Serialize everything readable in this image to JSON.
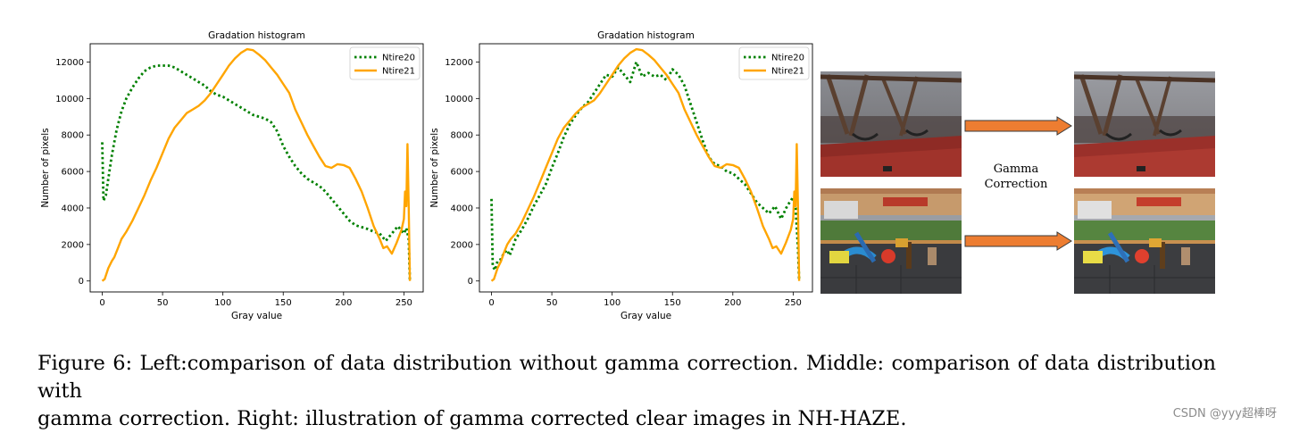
{
  "chart_data": [
    {
      "type": "line",
      "title": "Gradation histogram",
      "xlabel": "Gray value",
      "ylabel": "Number of pixels",
      "xlim": [
        -10,
        266
      ],
      "ylim": [
        -600,
        13000
      ],
      "xticks": [
        0,
        50,
        100,
        150,
        200,
        250
      ],
      "yticks": [
        0,
        2000,
        4000,
        6000,
        8000,
        10000,
        12000
      ],
      "legend_position": "top-right",
      "series": [
        {
          "name": "Ntire20",
          "style": "dotted",
          "color": "#008000",
          "x": [
            0,
            1,
            3,
            5,
            8,
            12,
            16,
            20,
            25,
            30,
            35,
            40,
            45,
            50,
            55,
            60,
            65,
            70,
            75,
            80,
            85,
            90,
            95,
            100,
            105,
            110,
            115,
            120,
            125,
            130,
            135,
            140,
            145,
            150,
            155,
            160,
            165,
            170,
            175,
            180,
            185,
            190,
            195,
            200,
            205,
            210,
            215,
            220,
            225,
            230,
            235,
            240,
            245,
            250,
            252,
            254,
            255
          ],
          "y": [
            7600,
            4400,
            4700,
            5600,
            6900,
            8300,
            9300,
            10000,
            10600,
            11100,
            11500,
            11700,
            11800,
            11800,
            11800,
            11700,
            11500,
            11300,
            11100,
            10900,
            10700,
            10400,
            10200,
            10100,
            9900,
            9700,
            9500,
            9300,
            9100,
            9000,
            8900,
            8700,
            8200,
            7400,
            6800,
            6300,
            5900,
            5600,
            5400,
            5200,
            4900,
            4500,
            4100,
            3700,
            3300,
            3050,
            2950,
            2850,
            2700,
            2600,
            2200,
            2600,
            3000,
            2600,
            2900,
            2300,
            0
          ]
        },
        {
          "name": "Ntire21",
          "style": "solid",
          "color": "#ffa500",
          "x": [
            0,
            2,
            5,
            8,
            10,
            13,
            16,
            20,
            25,
            30,
            35,
            40,
            45,
            50,
            55,
            60,
            65,
            70,
            75,
            80,
            85,
            90,
            95,
            100,
            105,
            110,
            115,
            120,
            125,
            130,
            135,
            140,
            145,
            150,
            155,
            160,
            165,
            170,
            175,
            180,
            185,
            190,
            195,
            200,
            205,
            210,
            215,
            220,
            225,
            230,
            233,
            236,
            240,
            244,
            248,
            250,
            251,
            252,
            253,
            254,
            255
          ],
          "y": [
            0,
            100,
            700,
            1100,
            1300,
            1800,
            2300,
            2700,
            3300,
            4000,
            4700,
            5500,
            6200,
            7000,
            7800,
            8400,
            8800,
            9200,
            9400,
            9600,
            9900,
            10300,
            10800,
            11300,
            11800,
            12200,
            12500,
            12700,
            12650,
            12400,
            12100,
            11700,
            11300,
            10800,
            10300,
            9400,
            8700,
            8000,
            7400,
            6800,
            6300,
            6200,
            6400,
            6350,
            6200,
            5600,
            4900,
            4000,
            3000,
            2300,
            1800,
            1900,
            1500,
            2100,
            2800,
            3400,
            4900,
            4100,
            7500,
            4000,
            0
          ]
        }
      ]
    },
    {
      "type": "line",
      "title": "Gradation histogram",
      "xlabel": "Gray value",
      "ylabel": "Number of pixels",
      "xlim": [
        -10,
        266
      ],
      "ylim": [
        -600,
        13000
      ],
      "xticks": [
        0,
        50,
        100,
        150,
        200,
        250
      ],
      "yticks": [
        0,
        2000,
        4000,
        6000,
        8000,
        10000,
        12000
      ],
      "legend_position": "top-right",
      "series": [
        {
          "name": "Ntire20",
          "style": "dotted",
          "color": "#008000",
          "x": [
            0,
            1,
            3,
            5,
            8,
            10,
            13,
            15,
            18,
            20,
            25,
            30,
            35,
            40,
            45,
            50,
            55,
            60,
            65,
            70,
            75,
            80,
            85,
            90,
            95,
            100,
            105,
            110,
            115,
            120,
            125,
            130,
            135,
            140,
            145,
            150,
            155,
            160,
            165,
            170,
            175,
            180,
            185,
            190,
            195,
            200,
            205,
            210,
            215,
            220,
            225,
            230,
            235,
            240,
            245,
            250,
            252,
            254,
            255
          ],
          "y": [
            4500,
            800,
            600,
            1100,
            1200,
            1500,
            1700,
            1400,
            1900,
            2300,
            2800,
            3400,
            4100,
            4700,
            5300,
            6200,
            7000,
            7900,
            8600,
            9100,
            9500,
            9800,
            10300,
            10800,
            11300,
            11200,
            11700,
            11300,
            10900,
            12000,
            11200,
            11400,
            11200,
            11300,
            11000,
            11600,
            11300,
            10700,
            9700,
            8700,
            7700,
            6800,
            6400,
            6300,
            6000,
            5900,
            5600,
            5300,
            4800,
            4300,
            4000,
            3700,
            4100,
            3400,
            4100,
            4600,
            4000,
            1800,
            0
          ]
        },
        {
          "name": "Ntire21",
          "style": "solid",
          "color": "#ffa500",
          "x": [
            0,
            2,
            5,
            8,
            10,
            13,
            16,
            20,
            25,
            30,
            35,
            40,
            45,
            50,
            55,
            60,
            65,
            70,
            75,
            80,
            85,
            90,
            95,
            100,
            105,
            110,
            115,
            120,
            125,
            130,
            135,
            140,
            145,
            150,
            155,
            160,
            165,
            170,
            175,
            180,
            185,
            190,
            195,
            200,
            205,
            210,
            215,
            220,
            225,
            230,
            233,
            236,
            240,
            244,
            248,
            250,
            251,
            252,
            253,
            254,
            255
          ],
          "y": [
            0,
            100,
            700,
            1100,
            1500,
            2000,
            2300,
            2600,
            3200,
            3900,
            4600,
            5400,
            6200,
            7000,
            7800,
            8400,
            8800,
            9200,
            9500,
            9700,
            9900,
            10300,
            10800,
            11300,
            11800,
            12200,
            12500,
            12700,
            12650,
            12400,
            12100,
            11700,
            11300,
            10800,
            10300,
            9400,
            8700,
            8000,
            7400,
            6800,
            6300,
            6200,
            6400,
            6350,
            6200,
            5600,
            4900,
            4000,
            3000,
            2300,
            1800,
            1900,
            1500,
            2100,
            2800,
            3400,
            4900,
            4100,
            7500,
            4000,
            0
          ]
        }
      ]
    }
  ],
  "right_panel": {
    "label_line1": "Gamma",
    "label_line2": "Correction",
    "arrow_color": "#ed7d31"
  },
  "caption": {
    "line1": "Figure 6: Left:comparison of data distribution without gamma correction. Middle: comparison of data distribution with",
    "line2": "gamma correction. Right: illustration of gamma corrected clear images in NH-HAZE."
  },
  "watermark": "CSDN @yyy超棒呀"
}
